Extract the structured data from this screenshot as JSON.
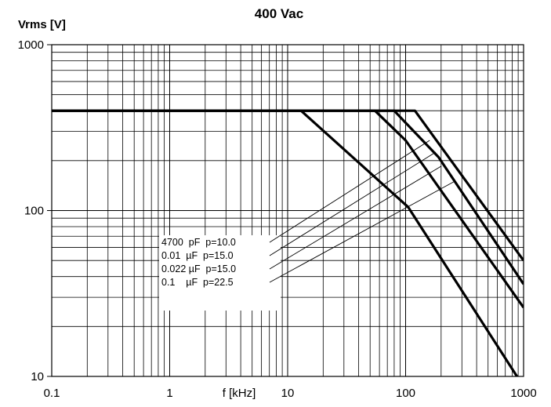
{
  "chart_data": {
    "type": "line",
    "title": "400 Vac",
    "xlabel": "f [kHz]",
    "ylabel": "Vrms [V]",
    "x_scale": "log",
    "y_scale": "log",
    "xlim": [
      0.1,
      1000
    ],
    "ylim": [
      10,
      1000
    ],
    "x_ticks": [
      "0.1",
      "1",
      "10",
      "100",
      "1000"
    ],
    "y_ticks": [
      "10",
      "100",
      "1000"
    ],
    "grid": true,
    "series": [
      {
        "name": "4700  pF  p=10.0",
        "x": [
          0.1,
          13,
          105,
          880
        ],
        "y": [
          400,
          400,
          105,
          10
        ]
      },
      {
        "name": "0.01  µF  p=15.0",
        "x": [
          0.1,
          55,
          100,
          1000
        ],
        "y": [
          400,
          400,
          265,
          26
        ]
      },
      {
        "name": "0.022 µF  p=15.0",
        "x": [
          0.1,
          80,
          190,
          1000
        ],
        "y": [
          400,
          400,
          210,
          36
        ]
      },
      {
        "name": "0.1    µF  p=22.5",
        "x": [
          0.1,
          120,
          1000
        ],
        "y": [
          400,
          400,
          50
        ]
      }
    ],
    "legend": {
      "placement": "center-left",
      "entries": [
        "4700  pF  p=10.0",
        "0.01  µF  p=15.0",
        "0.022 µF  p=15.0",
        "0.1    µF  p=22.5"
      ],
      "leader_targets": [
        {
          "x": 160,
          "y": 265
        },
        {
          "x": 180,
          "y": 225
        },
        {
          "x": 200,
          "y": 185
        },
        {
          "x": 260,
          "y": 150
        }
      ]
    }
  }
}
